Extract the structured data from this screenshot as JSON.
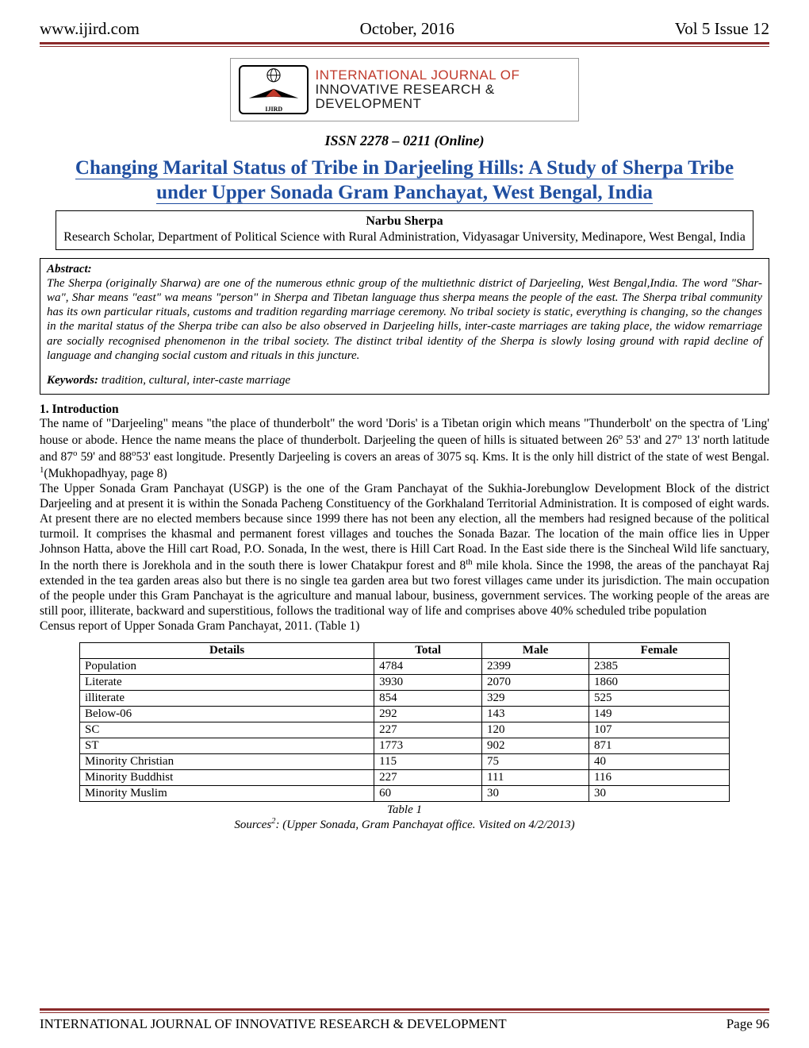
{
  "header": {
    "site": "www.ijird.com",
    "date": "October, 2016",
    "issue": "Vol 5 Issue 12"
  },
  "logo": {
    "line1": "INTERNATIONAL JOURNAL OF",
    "line2": "INNOVATIVE RESEARCH & DEVELOPMENT",
    "badge": "IJIRD"
  },
  "issn": "ISSN 2278 – 0211 (Online)",
  "title": "Changing Marital Status of Tribe in Darjeeling Hills: A Study of Sherpa Tribe under Upper Sonada Gram Panchayat, West Bengal, India",
  "author": {
    "name": "Narbu Sherpa",
    "affil": "Research Scholar, Department of Political Science with Rural Administration, Vidyasagar University, Medinapore, West Bengal, India"
  },
  "abstract": {
    "head": "Abstract:",
    "body": "The Sherpa (originally Sharwa) are one of the numerous ethnic group of the multiethnic district of Darjeeling, West Bengal,India. The word \"Shar-wa\", Shar means \"east\" wa means \"person\" in Sherpa and Tibetan language thus sherpa means the people of the east. The Sherpa tribal community has its own particular rituals, customs and tradition regarding marriage ceremony. No tribal society is static, everything is changing, so the changes in the marital status of the Sherpa tribe can also be also observed in Darjeeling hills, inter-caste marriages are taking place, the widow remarriage are socially recognised phenomenon in the tribal society. The distinct tribal identity of the Sherpa is slowly losing ground with rapid decline of language and changing social custom and rituals in this juncture.",
    "keywords_label": "Keywords:",
    "keywords": "tradition, cultural, inter-caste marriage"
  },
  "section1": {
    "head": "1. Introduction",
    "p1a": " The name of \"Darjeeling\" means \"the place of thunderbolt\" the word 'Doris' is a Tibetan origin which means \"Thunderbolt' on the spectra of 'Ling' house or abode. Hence the name means the place of thunderbolt. Darjeeling the queen of hills is situated between 26",
    "p1b": " 53' and 27",
    "p1c": " 13' north latitude and 87",
    "p1d": " 59' and 88",
    "p1e": "53' east longitude. Presently Darjeeling is covers an areas of 3075 sq. Kms. It is the only hill district of the state of west Bengal. ",
    "p1f": "(Mukhopadhyay, page 8)",
    "p2a": "The Upper Sonada Gram Panchayat (USGP) is the one of the Gram Panchayat of the Sukhia-Jorebunglow Development Block of the district Darjeeling and at present it is within the Sonada Pacheng Constituency of the Gorkhaland Territorial Administration. It is composed of eight wards. At present there are no elected members because since 1999 there has not been any election, all the members had resigned because of the political turmoil. It comprises the khasmal and permanent forest villages and touches the Sonada Bazar. The location of the main office lies in Upper Johnson Hatta, above the Hill cart Road, P.O. Sonada, In the west, there is Hill Cart Road. In the East side there is the Sincheal Wild life sanctuary, In the north there is Jorekhola and in the south there is lower Chatakpur forest and 8",
    "p2b": " mile khola. Since the 1998, the areas of the panchayat Raj extended in the tea garden areas also but there is no single tea garden area but two forest villages came under its jurisdiction. The main occupation of the people under this Gram Panchayat is the agriculture and manual labour, business, government services. The working people of the areas are still poor, illiterate, backward and superstitious, follows the traditional way of life and comprises above 40% scheduled tribe population",
    "p3": "Census report of Upper Sonada Gram Panchayat, 2011. (Table 1)"
  },
  "table": {
    "columns": [
      "Details",
      "Total",
      "Male",
      "Female"
    ],
    "rows": [
      [
        "Population",
        "4784",
        "2399",
        "2385"
      ],
      [
        "Literate",
        "3930",
        "2070",
        "1860"
      ],
      [
        "illiterate",
        "854",
        "329",
        "525"
      ],
      [
        "Below-06",
        "292",
        "143",
        "149"
      ],
      [
        "SC",
        "227",
        "120",
        "107"
      ],
      [
        "ST",
        "1773",
        "902",
        "871"
      ],
      [
        "Minority Christian",
        "115",
        "75",
        "40"
      ],
      [
        "Minority Buddhist",
        "227",
        "111",
        "116"
      ],
      [
        "Minority Muslim",
        "60",
        "30",
        "30"
      ]
    ],
    "caption": "Table 1",
    "source_a": "Sources",
    "source_b": ": (Upper Sonada, Gram Panchayat office. Visited on 4/2/2013)"
  },
  "footer": {
    "journal": "INTERNATIONAL JOURNAL OF INNOVATIVE RESEARCH & DEVELOPMENT",
    "page": "Page 96"
  },
  "colors": {
    "rule": "#8a2a2a",
    "title": "#1f4ea0",
    "logo_red": "#c0392b"
  }
}
